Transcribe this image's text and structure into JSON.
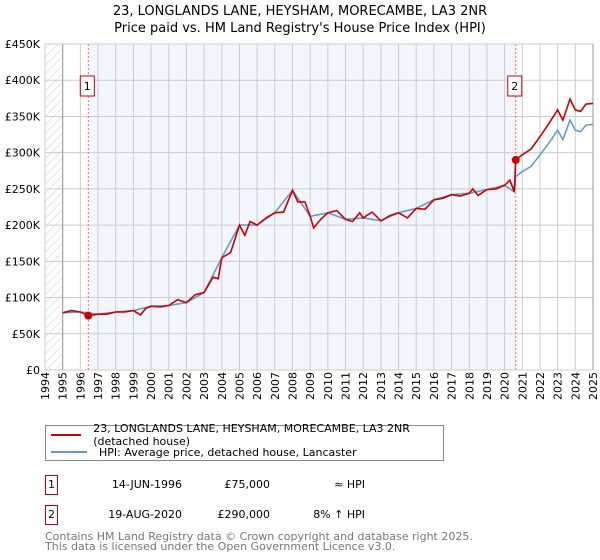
{
  "title_line1": "23, LONGLANDS LANE, HEYSHAM, MORECAMBE, LA3 2NR",
  "title_line2": "Price paid vs. HM Land Registry's House Price Index (HPI)",
  "chart_data": {
    "type": "line",
    "xlim": [
      1994,
      2025
    ],
    "ylim": [
      0,
      450000
    ],
    "x_ticks": [
      "1994",
      "1995",
      "1996",
      "1997",
      "1998",
      "1999",
      "2000",
      "2001",
      "2002",
      "2003",
      "2004",
      "2005",
      "2006",
      "2007",
      "2008",
      "2009",
      "2010",
      "2011",
      "2012",
      "2013",
      "2014",
      "2015",
      "2016",
      "2017",
      "2018",
      "2019",
      "2020",
      "2021",
      "2022",
      "2023",
      "2024",
      "2025"
    ],
    "y_ticks": [
      {
        "v": 0,
        "label": "£0"
      },
      {
        "v": 50000,
        "label": "£50K"
      },
      {
        "v": 100000,
        "label": "£100K"
      },
      {
        "v": 150000,
        "label": "£150K"
      },
      {
        "v": 200000,
        "label": "£200K"
      },
      {
        "v": 250000,
        "label": "£250K"
      },
      {
        "v": 300000,
        "label": "£300K"
      },
      {
        "v": 350000,
        "label": "£350K"
      },
      {
        "v": 400000,
        "label": "£400K"
      },
      {
        "v": 450000,
        "label": "£450K"
      }
    ],
    "grid": true,
    "series": [
      {
        "name": "23, LONGLANDS LANE, HEYSHAM, MORECAMBE, LA3 2NR (detached house)",
        "color": "#cc0000",
        "x": [
          1995,
          1995.5,
          1996,
          1996.45,
          1997,
          1997.5,
          1998,
          1998.5,
          1999,
          1999.4,
          1999.7,
          2000,
          2000.5,
          2001,
          2001.5,
          2002,
          2002.5,
          2003,
          2003.5,
          2003.8,
          2004,
          2004.5,
          2005,
          2005.3,
          2005.6,
          2006,
          2006.5,
          2007,
          2007.5,
          2008,
          2008.3,
          2008.7,
          2009,
          2009.2,
          2009.6,
          2010,
          2010.5,
          2011,
          2011.4,
          2011.8,
          2012,
          2012.5,
          2013,
          2013.5,
          2014,
          2014.5,
          2015,
          2015.5,
          2016,
          2016.5,
          2017,
          2017.5,
          2018,
          2018.2,
          2018.5,
          2019,
          2019.5,
          2020,
          2020.3,
          2020.55,
          2020.63,
          2021,
          2021.5,
          2022,
          2022.5,
          2023,
          2023.3,
          2023.7,
          2024,
          2024.3,
          2024.6,
          2025
        ],
        "y": [
          79000,
          82000,
          80000,
          75000,
          77000,
          77000,
          80000,
          80000,
          82000,
          76000,
          85000,
          88000,
          87000,
          89000,
          97000,
          93000,
          104000,
          107000,
          128000,
          126000,
          155000,
          162000,
          200000,
          186000,
          205000,
          200000,
          210000,
          217000,
          218000,
          248000,
          232000,
          232000,
          212000,
          196000,
          208000,
          217000,
          220000,
          208000,
          205000,
          217000,
          210000,
          218000,
          206000,
          213000,
          217000,
          210000,
          223000,
          222000,
          235000,
          237000,
          242000,
          240000,
          244000,
          250000,
          241000,
          249000,
          250000,
          255000,
          262000,
          246000,
          290000,
          297000,
          305000,
          322000,
          340000,
          359000,
          345000,
          374000,
          359000,
          357000,
          367000,
          368000
        ]
      },
      {
        "name": "HPI: Average price, detached house, Lancaster",
        "color": "#6699cc",
        "x": [
          1995,
          1996,
          1997,
          1998,
          1999,
          2000,
          2001,
          2002,
          2003,
          2004,
          2005,
          2006,
          2007,
          2008,
          2009,
          2010,
          2011,
          2012,
          2013,
          2014,
          2015,
          2016,
          2017,
          2018,
          2019,
          2020,
          2020.55,
          2020.63,
          2021,
          2021.5,
          2022,
          2022.5,
          2023,
          2023.3,
          2023.7,
          2024,
          2024.3,
          2024.6,
          2025
        ],
        "y": [
          79000,
          80000,
          77000,
          80000,
          82000,
          88000,
          89000,
          93000,
          107000,
          155000,
          200000,
          200000,
          217000,
          248000,
          212000,
          217000,
          208000,
          210000,
          206000,
          217000,
          223000,
          235000,
          242000,
          244000,
          249000,
          255000,
          246000,
          267000,
          274000,
          281000,
          297000,
          313000,
          331000,
          318000,
          345000,
          331000,
          329000,
          338000,
          339000
        ]
      }
    ],
    "sales": [
      {
        "label": "1",
        "x": 1996.45,
        "price": 75000
      },
      {
        "label": "2",
        "x": 2020.63,
        "price": 290000
      }
    ],
    "legend_position": "below"
  },
  "legend": {
    "property": "23, LONGLANDS LANE, HEYSHAM, MORECAMBE, LA3 2NR (detached house)",
    "hpi": "HPI: Average price, detached house, Lancaster"
  },
  "transactions": [
    {
      "num": "1",
      "date": "14-JUN-1996",
      "price": "£75,000",
      "hpi": "≈ HPI"
    },
    {
      "num": "2",
      "date": "19-AUG-2020",
      "price": "£290,000",
      "hpi": "8% ↑ HPI"
    }
  ],
  "footer_line1": "Contains HM Land Registry data © Crown copyright and database right 2025.",
  "footer_line2": "This data is licensed under the Open Government Licence v3.0."
}
